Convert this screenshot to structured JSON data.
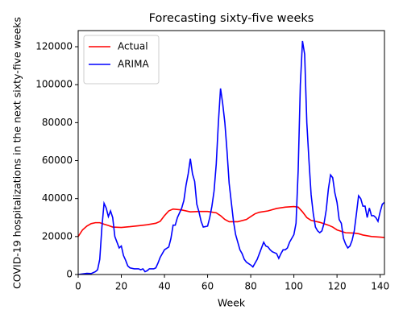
{
  "chart_data": {
    "type": "line",
    "title": "Forecasting sixty-five weeks",
    "x_label": "Week",
    "y_label": "COVID-19 hospitalizations in the next sixty-five weeks",
    "xlim": [
      0,
      142
    ],
    "ylim": [
      0,
      128500
    ],
    "xticks": [
      0,
      20,
      40,
      60,
      80,
      100,
      120,
      140
    ],
    "yticks": [
      0,
      20000,
      40000,
      60000,
      80000,
      100000,
      120000
    ],
    "legend": "upper left",
    "grid": false,
    "series": [
      {
        "name": "Actual",
        "color": "#ff0000",
        "x": [
          0,
          2,
          4,
          6,
          8,
          10,
          12,
          14,
          16,
          20,
          24,
          28,
          32,
          36,
          38,
          40,
          42,
          44,
          48,
          52,
          56,
          60,
          64,
          66,
          68,
          70,
          74,
          78,
          80,
          82,
          84,
          88,
          92,
          96,
          100,
          102,
          104,
          106,
          108,
          112,
          116,
          118,
          120,
          124,
          128,
          130,
          132,
          136,
          140,
          142
        ],
        "values": [
          20000,
          23500,
          25500,
          26800,
          27300,
          27300,
          26500,
          25800,
          25000,
          24800,
          25200,
          25700,
          26200,
          27000,
          28000,
          31000,
          33500,
          34500,
          34000,
          33000,
          33200,
          33200,
          32500,
          31000,
          29000,
          27800,
          27800,
          29000,
          30500,
          32000,
          32800,
          33500,
          34800,
          35500,
          35800,
          35500,
          33000,
          30000,
          28500,
          27500,
          26000,
          25000,
          23500,
          22000,
          21800,
          21500,
          20800,
          20000,
          19700,
          19500
        ]
      },
      {
        "name": "ARIMA",
        "color": "#0000ff",
        "x": [
          0,
          2,
          4,
          6,
          8,
          9,
          10,
          11,
          12,
          13,
          14,
          15,
          16,
          17,
          18,
          19,
          20,
          21,
          22,
          23,
          24,
          26,
          28,
          29,
          30,
          31,
          32,
          33,
          35,
          36,
          37,
          38,
          40,
          42,
          43,
          44,
          45,
          46,
          48,
          49,
          50,
          51,
          52,
          53,
          54,
          55,
          56,
          57,
          58,
          60,
          61,
          62,
          63,
          64,
          65,
          66,
          67,
          68,
          69,
          70,
          71,
          72,
          73,
          74,
          75,
          76,
          77,
          78,
          80,
          81,
          82,
          83,
          84,
          85,
          86,
          87,
          88,
          89,
          90,
          92,
          93,
          94,
          95,
          96,
          97,
          98,
          100,
          101,
          102,
          103,
          104,
          105,
          106,
          107,
          108,
          109,
          110,
          111,
          112,
          113,
          114,
          115,
          116,
          117,
          118,
          119,
          120,
          121,
          122,
          123,
          124,
          125,
          126,
          127,
          128,
          129,
          130,
          131,
          132,
          133,
          134,
          135,
          136,
          137,
          138,
          139,
          140,
          141,
          142
        ],
        "values": [
          0,
          300,
          600,
          500,
          1500,
          2500,
          8000,
          25000,
          37500,
          35000,
          30500,
          33500,
          30000,
          20000,
          17000,
          14000,
          15000,
          10000,
          7500,
          4500,
          3500,
          3000,
          3000,
          2500,
          3000,
          1500,
          2000,
          3000,
          3000,
          3500,
          6000,
          9000,
          13000,
          14500,
          19000,
          26000,
          26000,
          30000,
          35000,
          39000,
          47000,
          53000,
          61000,
          53000,
          49000,
          37000,
          33000,
          28000,
          25000,
          25500,
          30000,
          36000,
          44000,
          58000,
          80000,
          98000,
          90000,
          80000,
          65000,
          48000,
          38000,
          28000,
          21000,
          17000,
          13000,
          11000,
          8000,
          6500,
          5000,
          4000,
          6000,
          8000,
          11000,
          14000,
          17000,
          15000,
          14500,
          13000,
          12000,
          11000,
          8500,
          11000,
          13000,
          13000,
          14000,
          17000,
          21000,
          27000,
          55000,
          100000,
          123000,
          116000,
          80000,
          60000,
          42000,
          32000,
          25000,
          23000,
          22000,
          23000,
          27000,
          34000,
          45000,
          52500,
          51000,
          43000,
          38000,
          29000,
          27000,
          19000,
          16000,
          14000,
          15000,
          18000,
          23000,
          32000,
          41500,
          40000,
          36000,
          36000,
          30000,
          35000,
          31000,
          31000,
          30000,
          28000,
          33000,
          37000,
          38000
        ]
      }
    ]
  }
}
